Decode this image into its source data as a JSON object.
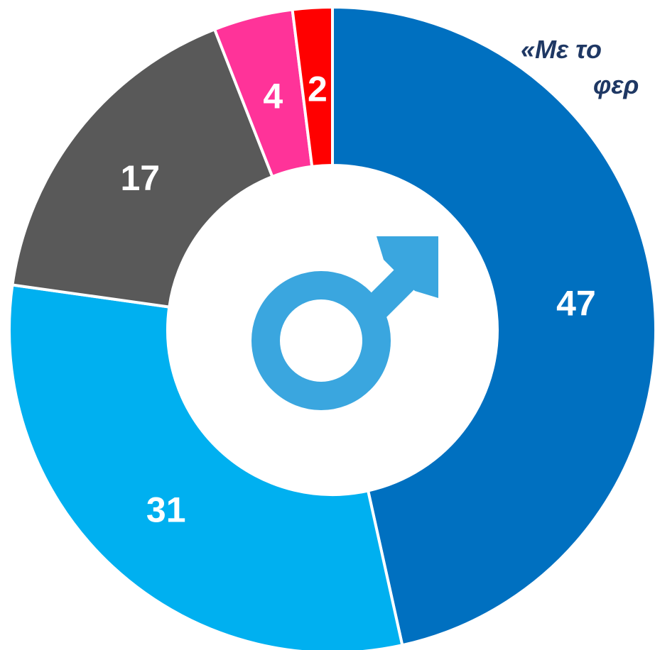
{
  "chart_data": {
    "type": "pie",
    "title_lines": [
      "«Με το",
      "φερ"
    ],
    "values": [
      47,
      31,
      17,
      4,
      2
    ],
    "colors": [
      "#0070c0",
      "#00b0f0",
      "#595959",
      "#ff3399",
      "#ff0000"
    ]
  }
}
